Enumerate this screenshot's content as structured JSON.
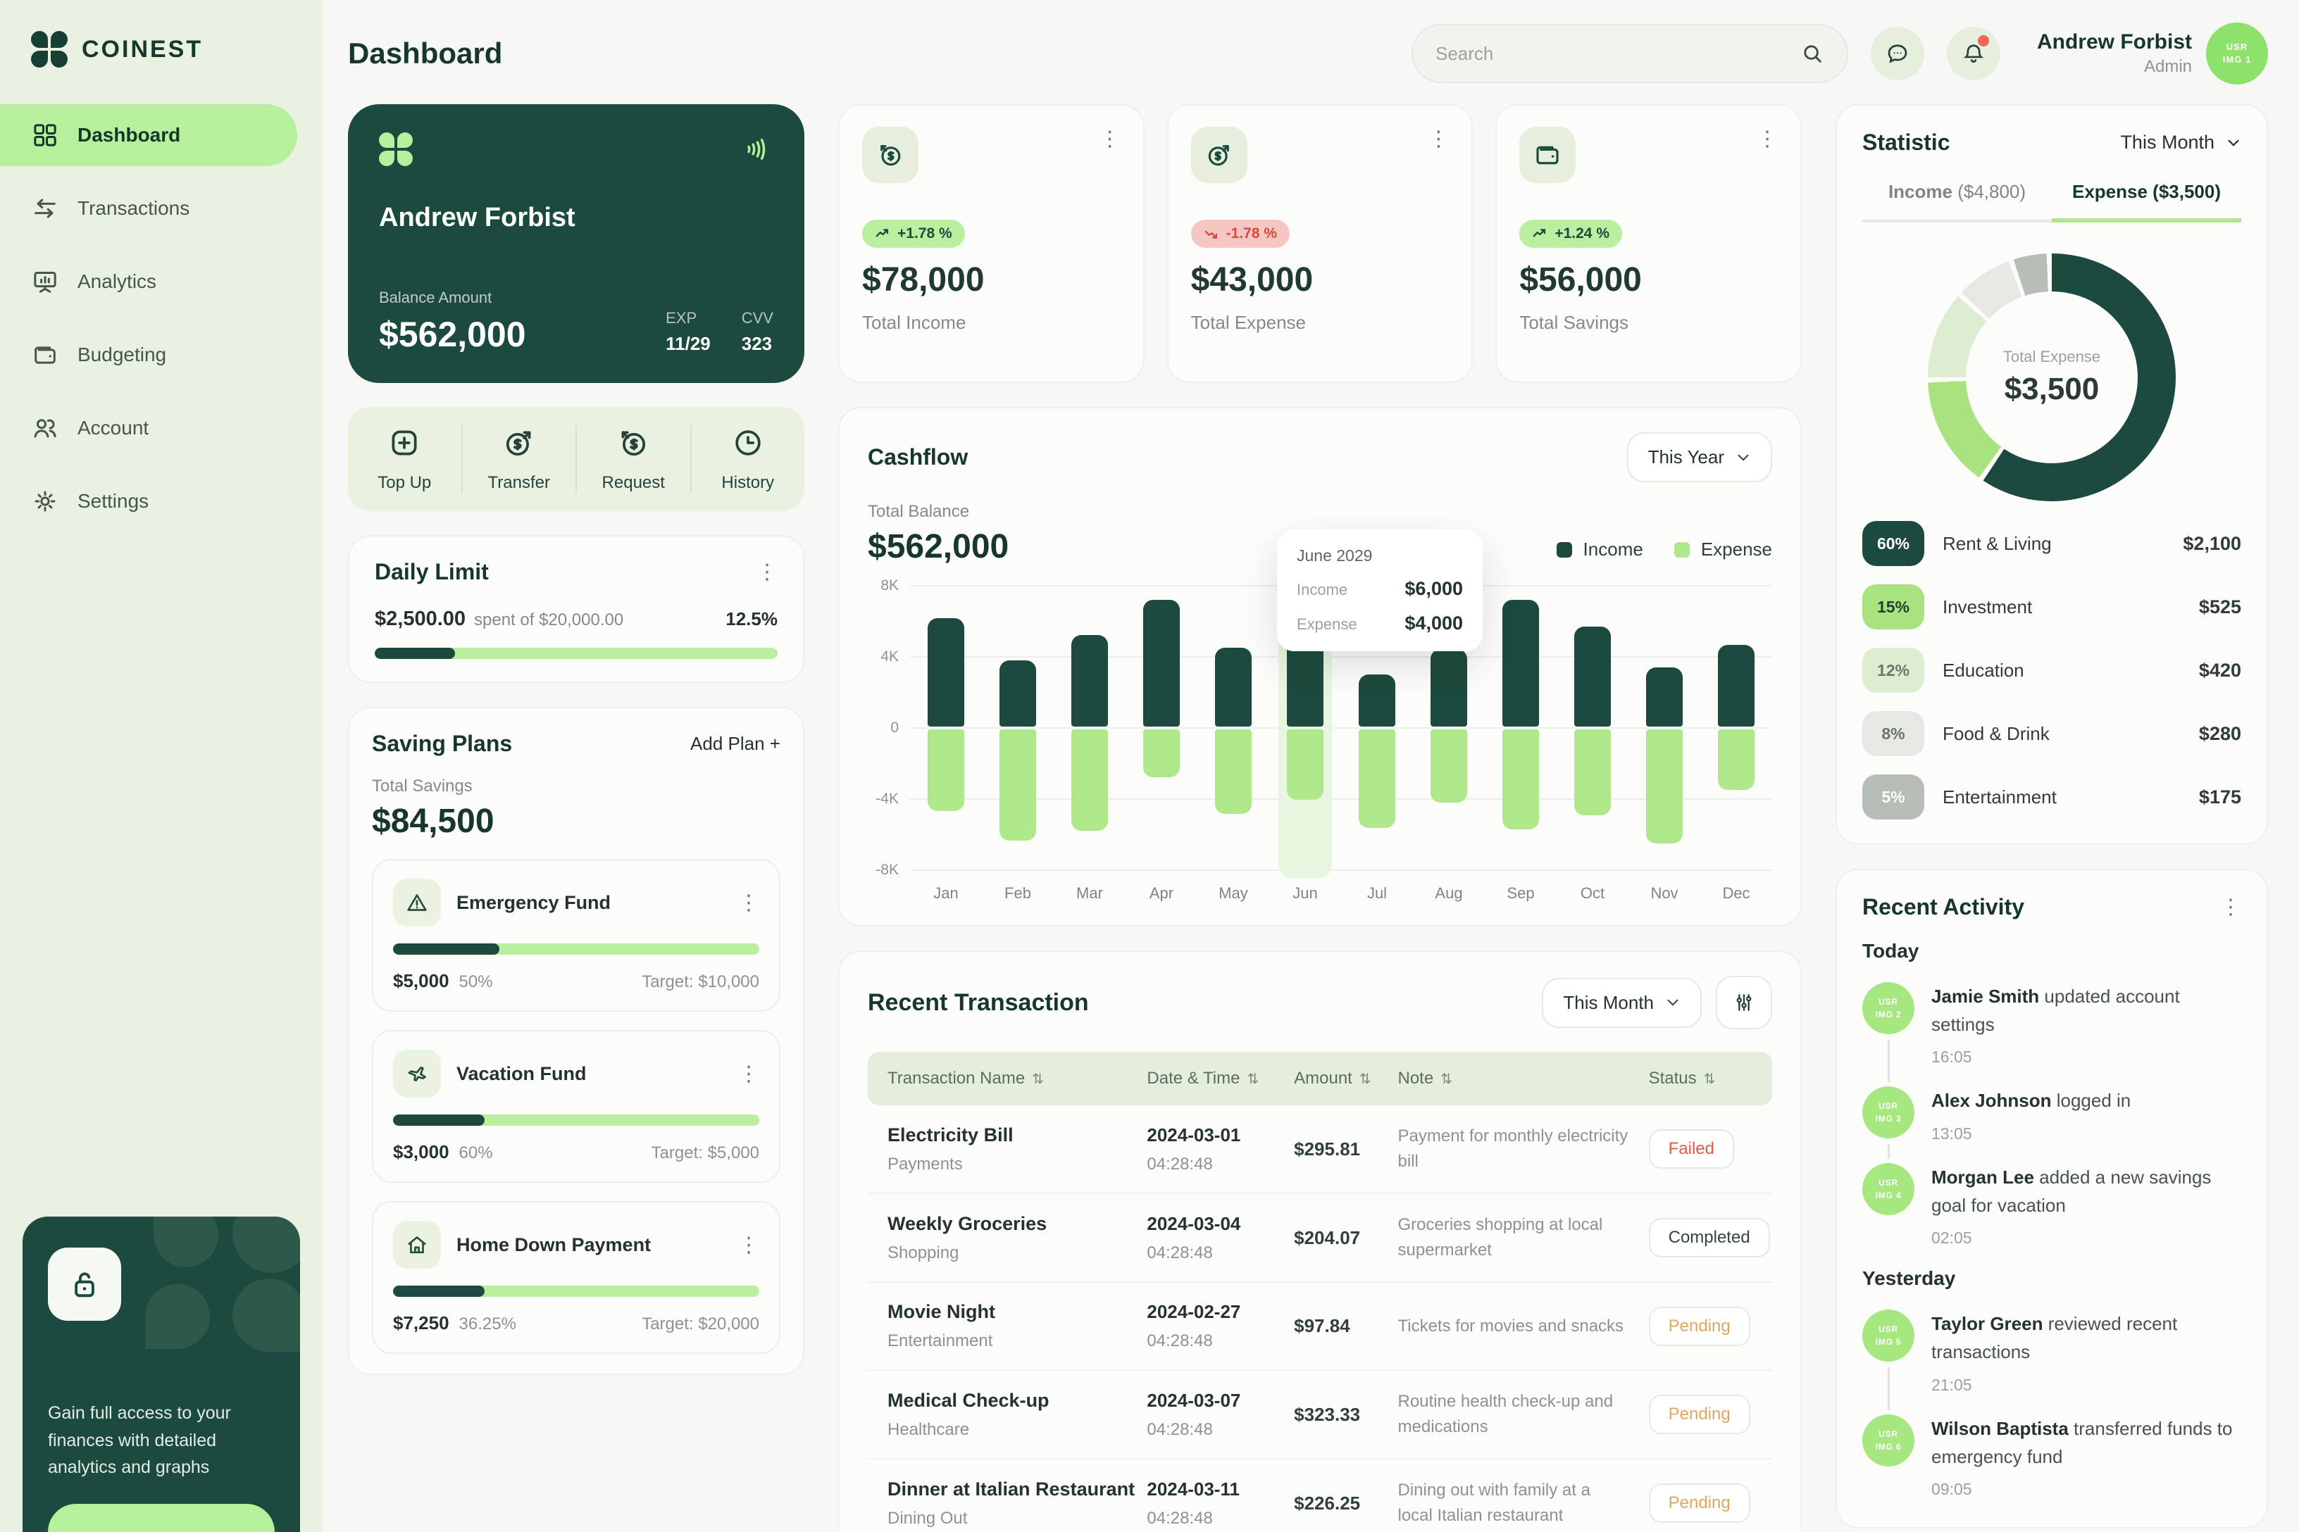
{
  "app": {
    "brand": "COINEST",
    "page_title": "Dashboard"
  },
  "header": {
    "search_placeholder": "Search",
    "user": {
      "name": "Andrew Forbist",
      "role": "Admin",
      "avatar_text": "USR\nIMG 1"
    }
  },
  "sidebar": {
    "items": [
      {
        "label": "Dashboard",
        "icon": "grid",
        "active": true
      },
      {
        "label": "Transactions",
        "icon": "transfer-arrows",
        "active": false
      },
      {
        "label": "Analytics",
        "icon": "analytics-board",
        "active": false
      },
      {
        "label": "Budgeting",
        "icon": "wallet",
        "active": false
      },
      {
        "label": "Account",
        "icon": "users",
        "active": false
      },
      {
        "label": "Settings",
        "icon": "gear",
        "active": false
      }
    ],
    "promo": {
      "text": "Gain full access to your finances with detailed analytics and graphs"
    }
  },
  "balance_card": {
    "holder": "Andrew Forbist",
    "balance_label": "Balance Amount",
    "balance": "$562,000",
    "exp_label": "EXP",
    "exp_value": "11/29",
    "cvv_label": "CVV",
    "cvv_value": "323"
  },
  "quick_actions": [
    {
      "label": "Top Up",
      "icon": "plus-square"
    },
    {
      "label": "Transfer",
      "icon": "dollar-out"
    },
    {
      "label": "Request",
      "icon": "dollar-in"
    },
    {
      "label": "History",
      "icon": "clock"
    }
  ],
  "daily_limit": {
    "title": "Daily Limit",
    "spent": "$2,500.00",
    "of_text": "spent of $20,000.00",
    "percent": "12.5%",
    "fill_pct": 20
  },
  "saving_plans": {
    "title": "Saving Plans",
    "add_label": "Add Plan",
    "total_label": "Total Savings",
    "total": "$84,500",
    "plans": [
      {
        "name": "Emergency Fund",
        "icon": "warning-triangle",
        "amount": "$5,000",
        "percent": "50%",
        "target": "Target: $10,000",
        "fill_pct": 29
      },
      {
        "name": "Vacation Fund",
        "icon": "plane",
        "amount": "$3,000",
        "percent": "60%",
        "target": "Target: $5,000",
        "fill_pct": 25
      },
      {
        "name": "Home Down Payment",
        "icon": "home",
        "amount": "$7,250",
        "percent": "36.25%",
        "target": "Target: $20,000",
        "fill_pct": 25
      }
    ]
  },
  "stat_cards": [
    {
      "icon": "dollar-in",
      "badge": "+1.78 %",
      "trend": "up",
      "value": "$78,000",
      "label": "Total Income"
    },
    {
      "icon": "dollar-out",
      "badge": "-1.78 %",
      "trend": "down",
      "value": "$43,000",
      "label": "Total Expense"
    },
    {
      "icon": "wallet",
      "badge": "+1.24 %",
      "trend": "up",
      "value": "$56,000",
      "label": "Total Savings"
    }
  ],
  "cashflow": {
    "title": "Cashflow",
    "period": "This Year",
    "total_label": "Total Balance",
    "total": "$562,000",
    "legend": [
      "Income",
      "Expense"
    ],
    "tooltip": {
      "month": "June 2029",
      "income_label": "Income",
      "income": "$6,000",
      "expense_label": "Expense",
      "expense": "$4,000"
    }
  },
  "chart_data": [
    {
      "type": "bar",
      "title": "Cashflow",
      "categories": [
        "Jan",
        "Feb",
        "Mar",
        "Apr",
        "May",
        "Jun",
        "Jul",
        "Aug",
        "Sep",
        "Oct",
        "Nov",
        "Dec"
      ],
      "series": [
        {
          "name": "Income",
          "color": "#1d4a3e",
          "values": [
            6200,
            3800,
            5200,
            7200,
            4500,
            6000,
            3000,
            4400,
            7200,
            5700,
            3400,
            4700
          ]
        },
        {
          "name": "Expense",
          "color": "#aee88b",
          "values": [
            -4700,
            -6300,
            -5800,
            -2800,
            -4800,
            -4000,
            -5600,
            -4200,
            -5700,
            -4900,
            -6500,
            -3500
          ]
        }
      ],
      "ylim": [
        -8000,
        8000
      ],
      "yticks": [
        "8K",
        "4K",
        "0",
        "-4K",
        "-8K"
      ],
      "grid": true,
      "legend_position": "top-right",
      "highlight_month": "Jun"
    },
    {
      "type": "pie",
      "title": "Expense breakdown",
      "center_label": "Total Expense",
      "center_value": "$3,500",
      "labels": [
        "Rent & Living",
        "Investment",
        "Education",
        "Food & Drink",
        "Entertainment"
      ],
      "values": [
        60,
        15,
        12,
        8,
        5
      ],
      "amounts": [
        "$2,100",
        "$525",
        "$420",
        "$280",
        "$175"
      ],
      "colors": [
        "#1d4a3e",
        "#a9e380",
        "#dcedd2",
        "#e6e8e4",
        "#b7bdb7"
      ],
      "pct_text_colors": [
        "#ffffff",
        "#23402f",
        "#6a756c",
        "#6a756c",
        "#ffffff"
      ]
    }
  ],
  "transactions": {
    "title": "Recent Transaction",
    "period": "This Month",
    "columns": [
      "Transaction Name",
      "Date & Time",
      "Amount",
      "Note",
      "Status"
    ],
    "rows": [
      {
        "name": "Electricity Bill",
        "category": "Payments",
        "date": "2024-03-01",
        "time": "04:28:48",
        "amount": "$295.81",
        "note": "Payment for monthly electricity bill",
        "status": "Failed"
      },
      {
        "name": "Weekly Groceries",
        "category": "Shopping",
        "date": "2024-03-04",
        "time": "04:28:48",
        "amount": "$204.07",
        "note": "Groceries shopping at local supermarket",
        "status": "Completed"
      },
      {
        "name": "Movie Night",
        "category": "Entertainment",
        "date": "2024-02-27",
        "time": "04:28:48",
        "amount": "$97.84",
        "note": "Tickets for movies and snacks",
        "status": "Pending"
      },
      {
        "name": "Medical Check-up",
        "category": "Healthcare",
        "date": "2024-03-07",
        "time": "04:28:48",
        "amount": "$323.33",
        "note": "Routine health check-up and medications",
        "status": "Pending"
      },
      {
        "name": "Dinner at Italian Restaurant",
        "category": "Dining Out",
        "date": "2024-03-11",
        "time": "04:28:48",
        "amount": "$226.25",
        "note": "Dining out with family at a local Italian restaurant",
        "status": "Pending"
      }
    ]
  },
  "statistic": {
    "title": "Statistic",
    "period": "This Month",
    "tabs": [
      {
        "label": "Income",
        "amount": "($4,800)",
        "active": false
      },
      {
        "label": "Expense",
        "amount": "($3,500)",
        "active": true
      }
    ]
  },
  "activity": {
    "title": "Recent Activity",
    "groups": [
      {
        "label": "Today",
        "items": [
          {
            "who": "Jamie Smith",
            "what": " updated account settings",
            "time": "16:05",
            "avatar": "USR\nIMG 2"
          },
          {
            "who": "Alex Johnson",
            "what": " logged in",
            "time": "13:05",
            "avatar": "USR\nIMG 3"
          },
          {
            "who": "Morgan Lee",
            "what": " added a new savings goal for vacation",
            "time": "02:05",
            "avatar": "USR\nIMG 4"
          }
        ]
      },
      {
        "label": "Yesterday",
        "items": [
          {
            "who": "Taylor Green",
            "what": " reviewed recent transactions",
            "time": "21:05",
            "avatar": "USR\nIMG 5"
          },
          {
            "who": "Wilson Baptista",
            "what": " transferred funds to emergency fund",
            "time": "09:05",
            "avatar": "USR\nIMG 6"
          }
        ]
      }
    ]
  }
}
